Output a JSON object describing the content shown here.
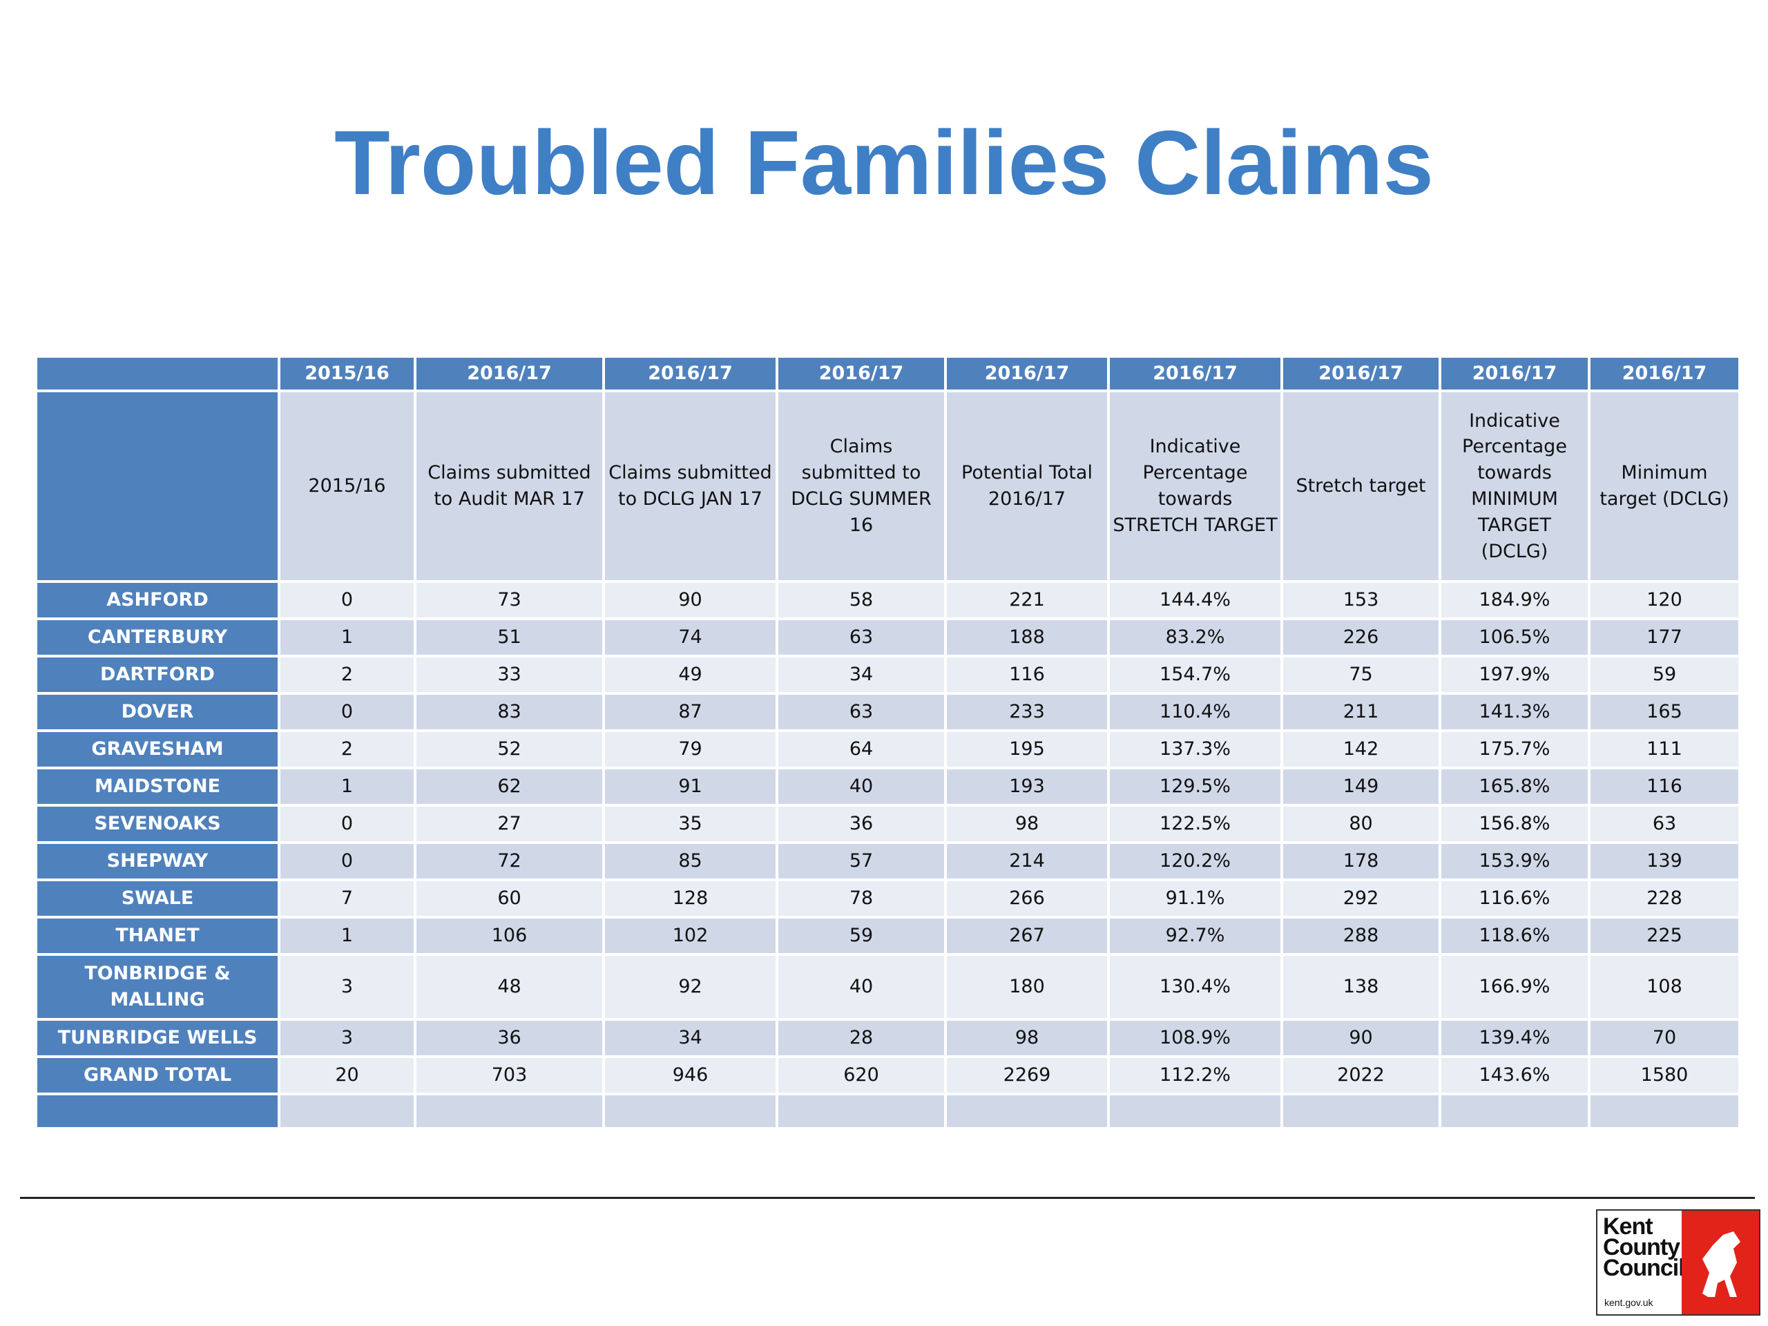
{
  "title": "Troubled Families Claims",
  "table": {
    "header_years": [
      "2015/16",
      "2016/17",
      "2016/17",
      "2016/17",
      "2016/17",
      "2016/17",
      "2016/17",
      "2016/17",
      "2016/17"
    ],
    "column_labels": [
      "2015/16",
      "Claims submitted to Audit MAR 17",
      "Claims submitted to DCLG JAN 17",
      "Claims submitted to DCLG SUMMER 16",
      "Potential Total 2016/17",
      "Indicative Percentage towards STRETCH TARGET",
      "Stretch target",
      "Indicative Percentage towards MINIMUM TARGET (DCLG)",
      "Minimum target (DCLG)"
    ],
    "rows": [
      {
        "district": "ASHFORD",
        "values": [
          0,
          73,
          90,
          58,
          221,
          "144.4%",
          153,
          "184.9%",
          120
        ]
      },
      {
        "district": "CANTERBURY",
        "values": [
          1,
          51,
          74,
          63,
          188,
          "83.2%",
          226,
          "106.5%",
          177
        ]
      },
      {
        "district": "DARTFORD",
        "values": [
          2,
          33,
          49,
          34,
          116,
          "154.7%",
          75,
          "197.9%",
          59
        ]
      },
      {
        "district": "DOVER",
        "values": [
          0,
          83,
          87,
          63,
          233,
          "110.4%",
          211,
          "141.3%",
          165
        ]
      },
      {
        "district": "GRAVESHAM",
        "values": [
          2,
          52,
          79,
          64,
          195,
          "137.3%",
          142,
          "175.7%",
          111
        ]
      },
      {
        "district": "MAIDSTONE",
        "values": [
          1,
          62,
          91,
          40,
          193,
          "129.5%",
          149,
          "165.8%",
          116
        ]
      },
      {
        "district": "SEVENOAKS",
        "values": [
          0,
          27,
          35,
          36,
          98,
          "122.5%",
          80,
          "156.8%",
          63
        ]
      },
      {
        "district": "SHEPWAY",
        "values": [
          0,
          72,
          85,
          57,
          214,
          "120.2%",
          178,
          "153.9%",
          139
        ]
      },
      {
        "district": "SWALE",
        "values": [
          7,
          60,
          128,
          78,
          266,
          "91.1%",
          292,
          "116.6%",
          228
        ]
      },
      {
        "district": "THANET",
        "values": [
          1,
          106,
          102,
          59,
          267,
          "92.7%",
          288,
          "118.6%",
          225
        ]
      },
      {
        "district": "TONBRIDGE & MALLING",
        "values": [
          3,
          48,
          92,
          40,
          180,
          "130.4%",
          138,
          "166.9%",
          108
        ]
      },
      {
        "district": "TUNBRIDGE WELLS",
        "values": [
          3,
          36,
          34,
          28,
          98,
          "108.9%",
          90,
          "139.4%",
          70
        ]
      },
      {
        "district": "GRAND TOTAL",
        "values": [
          20,
          703,
          946,
          620,
          2269,
          "112.2%",
          2022,
          "143.6%",
          1580
        ]
      }
    ]
  },
  "logo": {
    "lines": [
      "Kent",
      "County",
      "Council"
    ],
    "url": "kent.gov.uk"
  }
}
